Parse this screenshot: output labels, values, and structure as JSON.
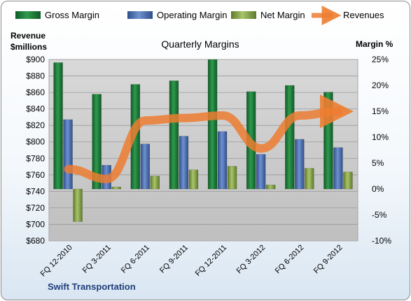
{
  "chart_data": {
    "type": "bar",
    "title": "Quarterly Margins",
    "company": "Swift Transportation",
    "left_axis_label_line1": "Revenue",
    "left_axis_label_line2": "$millions",
    "right_axis_label": "Margin %",
    "categories": [
      "FQ 12-2010",
      "FQ 3-2011",
      "FQ 6-2011",
      "FQ 9-2011",
      "FQ 12-2011",
      "FQ 3-2012",
      "FQ 6-2012",
      "FQ 9-2012"
    ],
    "left_axis": {
      "min": 680,
      "max": 900,
      "step": 20,
      "unit_prefix": "$"
    },
    "right_axis": {
      "min": -10,
      "max": 25,
      "step": 5,
      "unit_suffix": "%"
    },
    "grid": true,
    "legend_position": "top",
    "series": [
      {
        "name": "Gross Margin",
        "axis": "right",
        "type": "bar",
        "color": "#1f7a3a",
        "values": [
          24.4,
          18.3,
          20.2,
          20.9,
          25.0,
          18.8,
          20.0,
          18.7
        ]
      },
      {
        "name": "Operating Margin",
        "axis": "right",
        "type": "bar",
        "color": "#4f74b5",
        "values": [
          13.4,
          4.6,
          8.7,
          10.2,
          11.1,
          6.7,
          9.6,
          8.0
        ]
      },
      {
        "name": "Net Margin",
        "axis": "right",
        "type": "bar",
        "color": "#8aa84a",
        "values": [
          -6.3,
          0.4,
          2.5,
          3.7,
          4.4,
          0.8,
          4.0,
          3.3
        ]
      },
      {
        "name": "Revenues",
        "axis": "left",
        "type": "line",
        "color": "#ed7d31",
        "values": [
          767,
          755,
          826,
          829,
          832,
          792,
          832,
          837
        ]
      }
    ]
  }
}
